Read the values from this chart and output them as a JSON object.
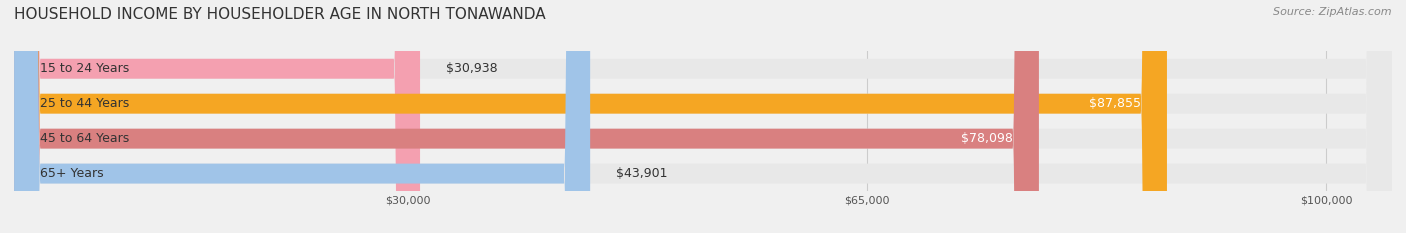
{
  "title": "HOUSEHOLD INCOME BY HOUSEHOLDER AGE IN NORTH TONAWANDA",
  "source": "Source: ZipAtlas.com",
  "categories": [
    "15 to 24 Years",
    "25 to 44 Years",
    "45 to 64 Years",
    "65+ Years"
  ],
  "values": [
    30938,
    87855,
    78098,
    43901
  ],
  "bar_colors": [
    "#f4a0b0",
    "#f5a623",
    "#d98080",
    "#a0c4e8"
  ],
  "label_colors": [
    "#555555",
    "#ffffff",
    "#ffffff",
    "#555555"
  ],
  "background_color": "#f0f0f0",
  "bar_bg_color": "#e8e8e8",
  "xticks": [
    30000,
    65000,
    100000
  ],
  "xtick_labels": [
    "$30,000",
    "$65,000",
    "$100,000"
  ],
  "xmin": 0,
  "xmax": 105000,
  "bar_height": 0.55,
  "title_fontsize": 11,
  "source_fontsize": 8,
  "label_fontsize": 9,
  "category_fontsize": 9,
  "value_fontsize": 9
}
